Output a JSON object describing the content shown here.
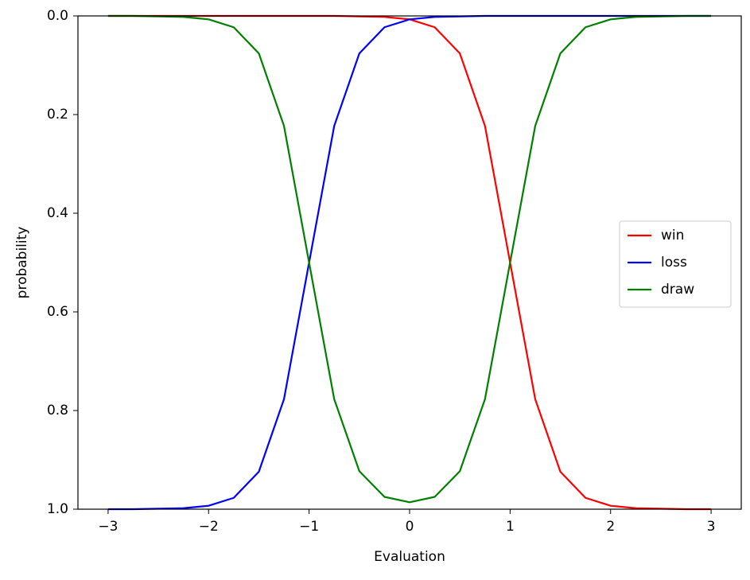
{
  "chart_data": {
    "type": "line",
    "xlabel": "Evaluation",
    "ylabel": "probability",
    "x": [
      -3,
      -2.75,
      -2.5,
      -2.25,
      -2,
      -1.75,
      -1.5,
      -1.25,
      -1,
      -0.75,
      -0.5,
      -0.25,
      0,
      0.25,
      0.5,
      0.75,
      1,
      1.25,
      1.5,
      1.75,
      2,
      2.25,
      2.5,
      2.75,
      3
    ],
    "series": [
      {
        "name": "win",
        "color": "#ff0000",
        "values": [
          0,
          0,
          0,
          0,
          0,
          0,
          0,
          0,
          0,
          0,
          0.001,
          0.002,
          0.007,
          0.023,
          0.076,
          0.223,
          0.5,
          0.777,
          0.924,
          0.977,
          0.993,
          0.998,
          0.999,
          1,
          1
        ]
      },
      {
        "name": "loss",
        "color": "#0000ff",
        "values": [
          1,
          1,
          0.999,
          0.998,
          0.993,
          0.977,
          0.924,
          0.777,
          0.5,
          0.223,
          0.076,
          0.023,
          0.007,
          0.002,
          0.001,
          0,
          0,
          0,
          0,
          0,
          0,
          0,
          0,
          0,
          0
        ]
      },
      {
        "name": "draw",
        "color": "#008000",
        "values": [
          0,
          0,
          0.001,
          0.002,
          0.007,
          0.023,
          0.076,
          0.223,
          0.5,
          0.777,
          0.923,
          0.975,
          0.986,
          0.975,
          0.923,
          0.777,
          0.5,
          0.223,
          0.076,
          0.023,
          0.007,
          0.002,
          0.001,
          0,
          0
        ]
      }
    ],
    "xlim": [
      -3.3,
      3.3
    ],
    "xticks": [
      {
        "value": -3,
        "label": "−3"
      },
      {
        "value": -2,
        "label": "−2"
      },
      {
        "value": -1,
        "label": "−1"
      },
      0,
      1,
      2,
      3
    ],
    "ylim": [
      0,
      1
    ],
    "y_inverted": true,
    "yticks": [
      {
        "value": 0,
        "label": "0.0"
      },
      0.2,
      0.4,
      0.6,
      0.8,
      {
        "value": 1,
        "label": "1.0"
      }
    ],
    "legend": "right"
  }
}
